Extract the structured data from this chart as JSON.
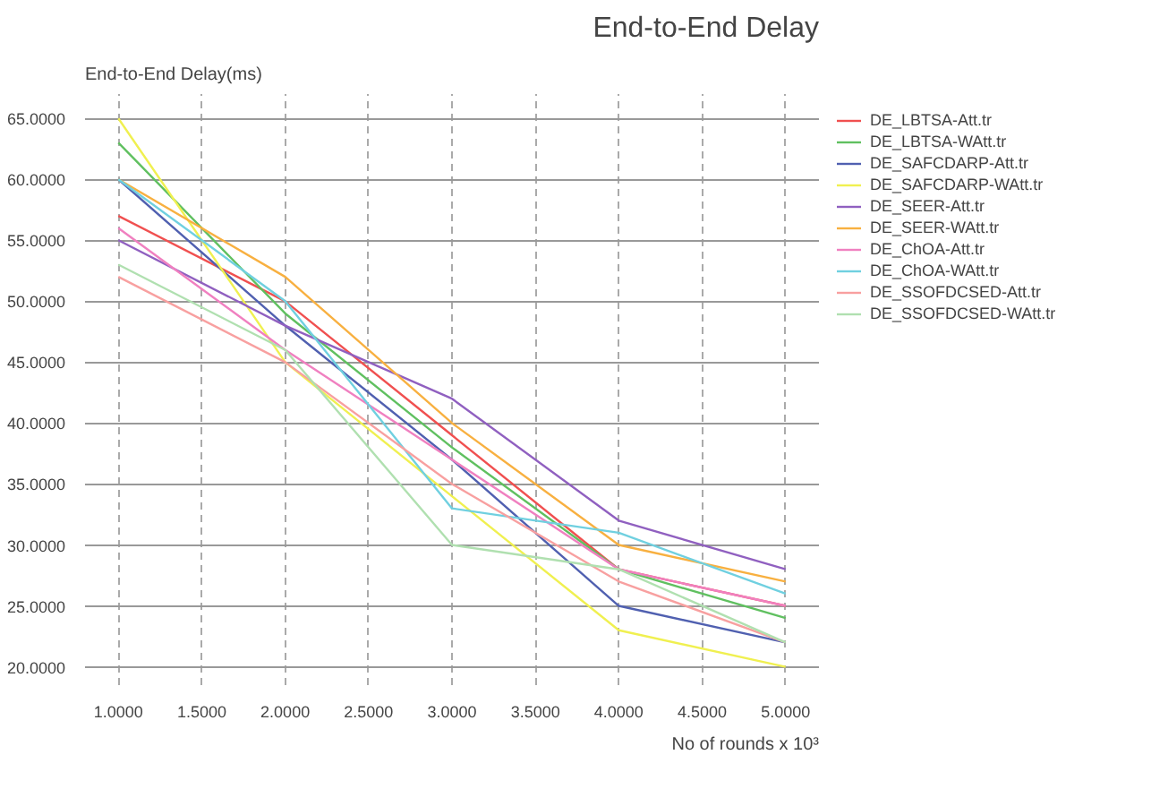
{
  "chart_data": {
    "type": "line",
    "title": "End-to-End Delay",
    "ylabel": "End-to-End Delay(ms)",
    "xlabel": "No of rounds x 10³",
    "x": [
      1,
      2,
      3,
      4,
      5
    ],
    "series": [
      {
        "name": "DE_LBTSA-Att.tr",
        "color": "#f05050",
        "values": [
          57,
          50,
          39,
          28,
          25
        ]
      },
      {
        "name": "DE_LBTSA-WAtt.tr",
        "color": "#60c060",
        "values": [
          63,
          49,
          38,
          28,
          24
        ]
      },
      {
        "name": "DE_SAFCDARP-Att.tr",
        "color": "#5060b0",
        "values": [
          60,
          48,
          37,
          25,
          22
        ]
      },
      {
        "name": "DE_SAFCDARP-WAtt.tr",
        "color": "#f0f050",
        "values": [
          65,
          45,
          34,
          23,
          20
        ]
      },
      {
        "name": "DE_SEER-Att.tr",
        "color": "#9060c0",
        "values": [
          55,
          48,
          42,
          32,
          28
        ]
      },
      {
        "name": "DE_SEER-WAtt.tr",
        "color": "#f8b040",
        "values": [
          60,
          52,
          40,
          30,
          27
        ]
      },
      {
        "name": "DE_ChOA-Att.tr",
        "color": "#f080c0",
        "values": [
          56,
          46,
          37,
          28,
          25
        ]
      },
      {
        "name": "DE_ChOA-WAtt.tr",
        "color": "#70d0e0",
        "values": [
          60,
          50,
          33,
          31,
          26
        ]
      },
      {
        "name": "DE_SSOFDCSED-Att.tr",
        "color": "#f8a0a0",
        "values": [
          52,
          45,
          35,
          27,
          22
        ]
      },
      {
        "name": "DE_SSOFDCSED-WAtt.tr",
        "color": "#b0e0b0",
        "values": [
          53,
          46,
          30,
          28,
          22
        ]
      }
    ],
    "xlim": [
      0.8,
      5.2
    ],
    "ylim": [
      18.5,
      67
    ],
    "xticks": [
      {
        "value": 1,
        "label": "1.0000"
      },
      {
        "value": 1.5,
        "label": "1.5000"
      },
      {
        "value": 2,
        "label": "2.0000"
      },
      {
        "value": 2.5,
        "label": "2.5000"
      },
      {
        "value": 3,
        "label": "3.0000"
      },
      {
        "value": 3.5,
        "label": "3.5000"
      },
      {
        "value": 4,
        "label": "4.0000"
      },
      {
        "value": 4.5,
        "label": "4.5000"
      },
      {
        "value": 5,
        "label": "5.0000"
      }
    ],
    "yticks": [
      {
        "value": 20,
        "label": "20.0000"
      },
      {
        "value": 25,
        "label": "25.0000"
      },
      {
        "value": 30,
        "label": "30.0000"
      },
      {
        "value": 35,
        "label": "35.0000"
      },
      {
        "value": 40,
        "label": "40.0000"
      },
      {
        "value": 45,
        "label": "45.0000"
      },
      {
        "value": 50,
        "label": "50.0000"
      },
      {
        "value": 55,
        "label": "55.0000"
      },
      {
        "value": 60,
        "label": "60.0000"
      },
      {
        "value": 65,
        "label": "65.0000"
      }
    ],
    "grid": true,
    "legend": "top right",
    "marker": "none",
    "line_style": "solid"
  }
}
